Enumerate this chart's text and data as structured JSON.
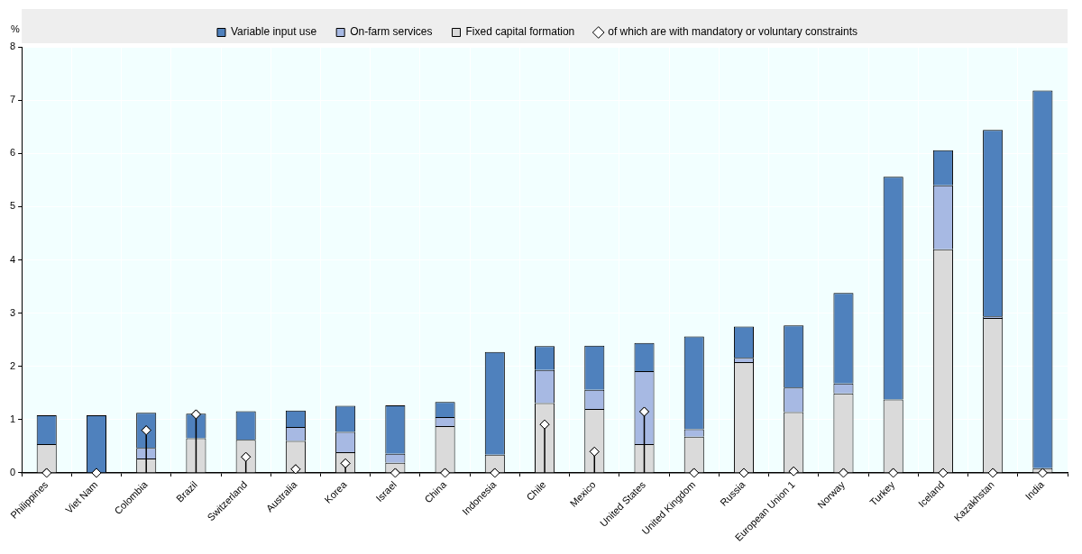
{
  "chart_data": {
    "type": "bar",
    "stacked": true,
    "ylabel": "%",
    "categories": [
      "Philippines",
      "Viet Nam",
      "Colombia",
      "Brazil",
      "Switzerland",
      "Australia",
      "Korea",
      "Israel",
      "China",
      "Indonesia",
      "Chile",
      "Mexico",
      "United States",
      "United Kingdom",
      "Russia",
      "European Union 1",
      "Norway",
      "Turkey",
      "Iceland",
      "Kazakhstan",
      "India"
    ],
    "series": [
      {
        "name": "Fixed capital formation",
        "color": "#dadada",
        "values": [
          0.54,
          0,
          0.27,
          0.65,
          0.62,
          0.6,
          0.39,
          0.19,
          0.88,
          0.34,
          1.31,
          1.2,
          0.54,
          0.68,
          2.08,
          1.14,
          1.49,
          1.38,
          4.2,
          2.91,
          0.09
        ]
      },
      {
        "name": "On-farm services",
        "color": "#a7b9e3",
        "values": [
          0,
          0,
          0.2,
          null,
          0,
          0.26,
          0.38,
          0.17,
          0.17,
          null,
          0.62,
          0.36,
          1.37,
          0.14,
          0.08,
          0.46,
          0.19,
          null,
          1.2,
          0.03,
          null
        ]
      },
      {
        "name": "Variable input use",
        "color": "#4f81bd",
        "values": [
          0.54,
          1.08,
          0.66,
          0.46,
          0.54,
          0.31,
          0.49,
          0.91,
          0.28,
          1.93,
          0.45,
          0.83,
          0.53,
          1.74,
          0.59,
          1.17,
          1.7,
          4.18,
          0.66,
          3.5,
          7.09
        ]
      },
      {
        "name": "of which are with mandatory or voluntary constraints",
        "type": "lollipop",
        "color": "#ffffff",
        "values": [
          0,
          0,
          0.8,
          1.1,
          0.3,
          0.07,
          0.18,
          0,
          0,
          0,
          0.91,
          0.4,
          1.15,
          0,
          0,
          0.03,
          0,
          0,
          0,
          0,
          0
        ]
      }
    ],
    "ylim": [
      0,
      8
    ],
    "yticks": [
      0,
      1,
      2,
      3,
      4,
      5,
      6,
      7,
      8
    ],
    "grid": true,
    "legend": "top",
    "marker": "diamond"
  }
}
